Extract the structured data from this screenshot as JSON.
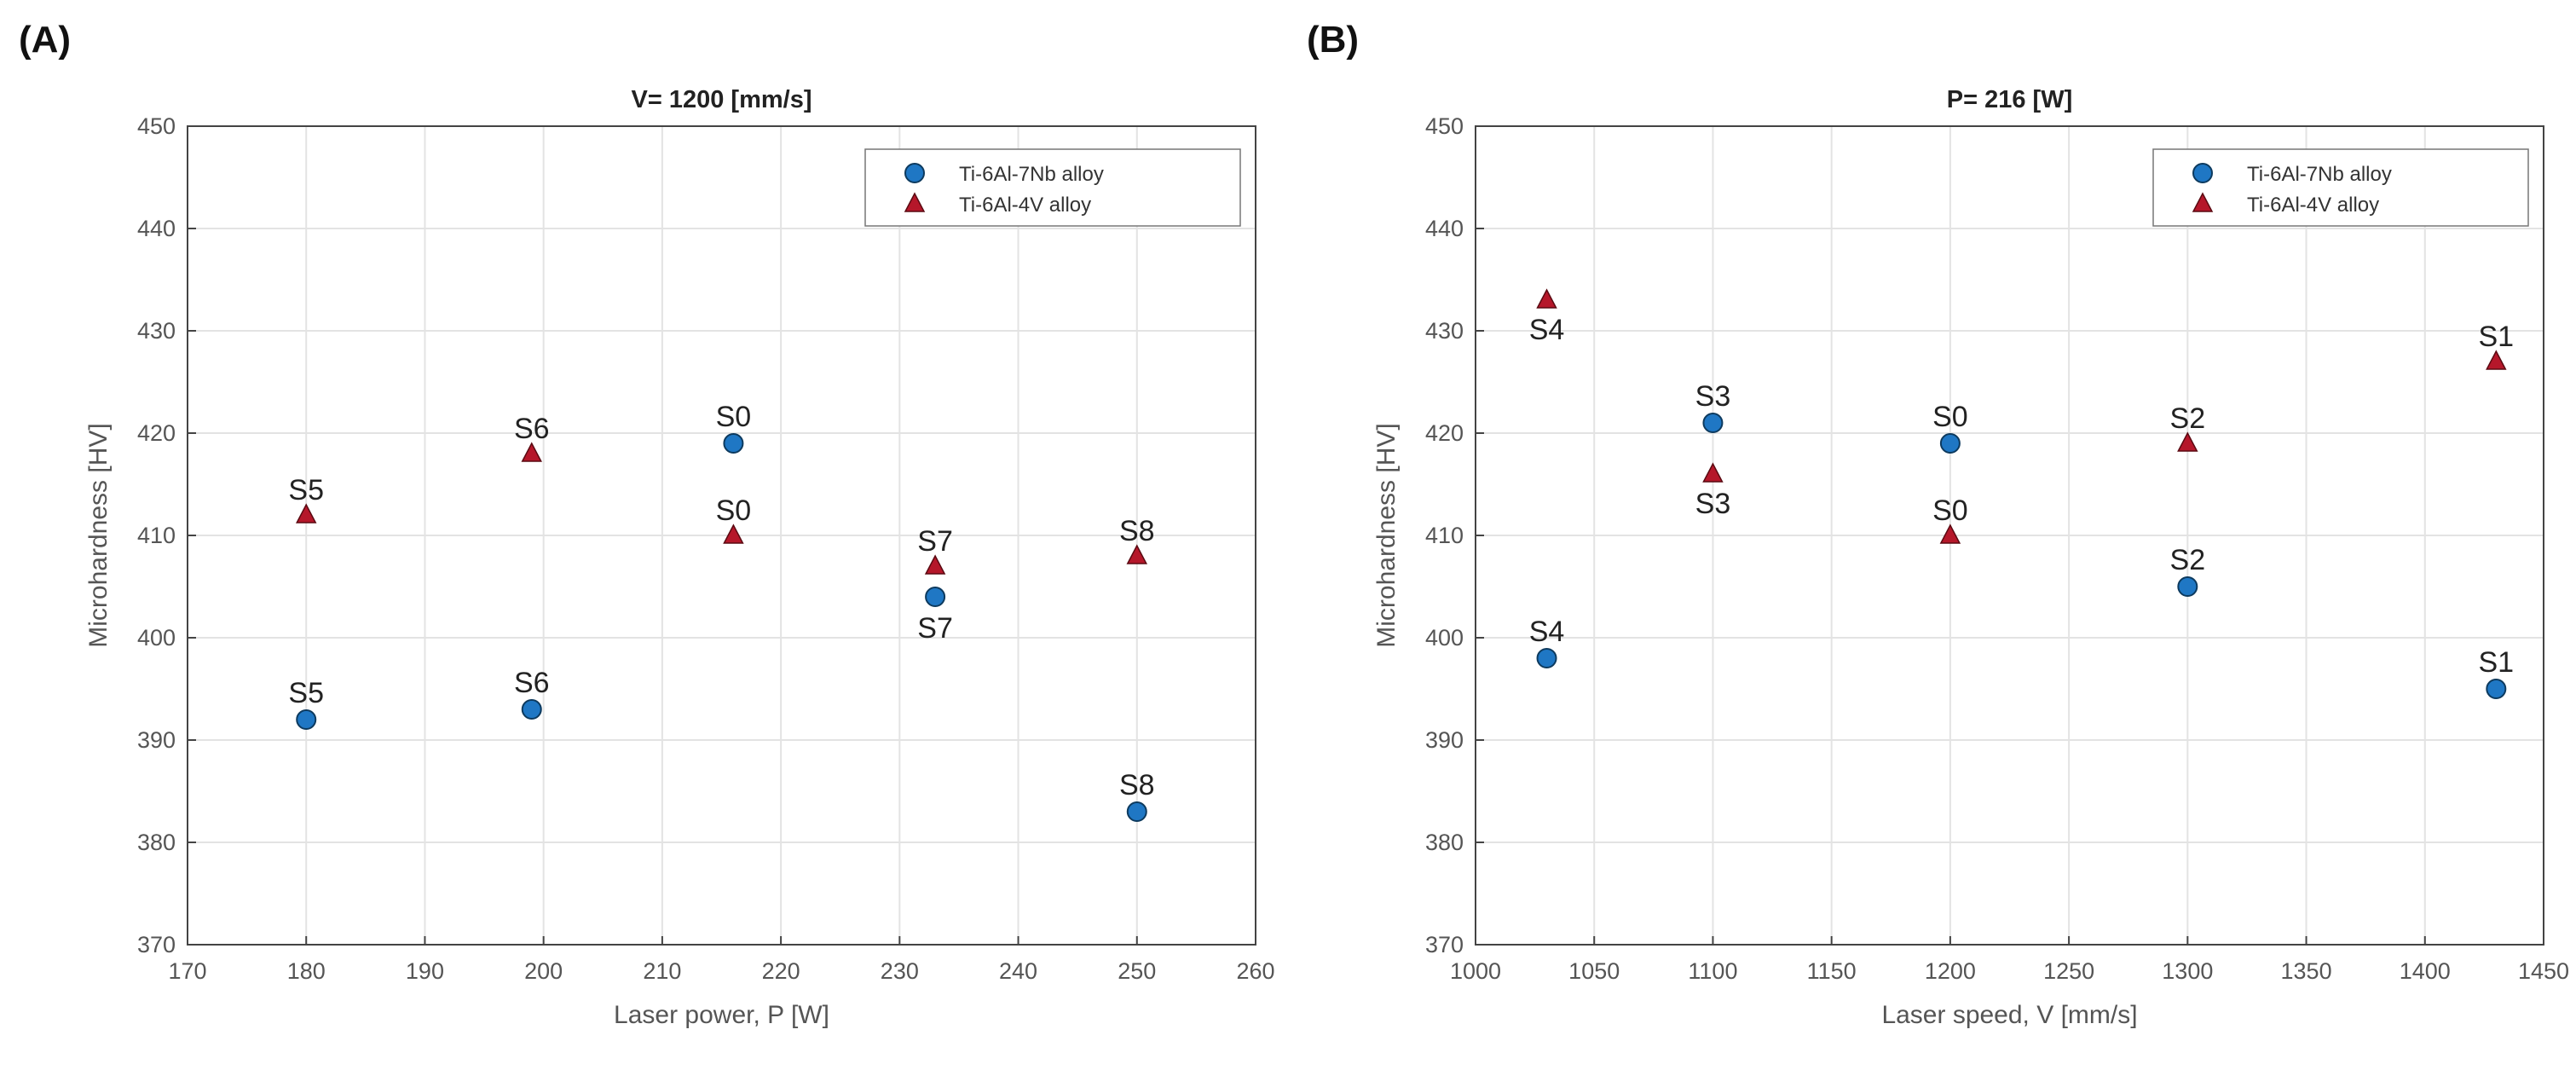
{
  "chart_data": [
    {
      "id": "A",
      "panel_label": "(A)",
      "type": "scatter",
      "title": "V= 1200 [mm/s]",
      "xlabel": "Laser power, P [W]",
      "ylabel": "Microhardness [HV]",
      "xlim": [
        170,
        260
      ],
      "ylim": [
        370,
        450
      ],
      "xticks": [
        170,
        180,
        190,
        200,
        210,
        220,
        230,
        240,
        250,
        260
      ],
      "yticks": [
        370,
        380,
        390,
        400,
        410,
        420,
        430,
        440,
        450
      ],
      "grid": true,
      "legend_position": "top-right",
      "series": [
        {
          "name": "Ti-6Al-7Nb alloy",
          "marker": "circle",
          "color": "#1f77c4",
          "points": [
            {
              "x": 180,
              "y": 392,
              "label": "S5"
            },
            {
              "x": 199,
              "y": 393,
              "label": "S6"
            },
            {
              "x": 216,
              "y": 419,
              "label": "S0"
            },
            {
              "x": 233,
              "y": 404,
              "label": "S7"
            },
            {
              "x": 250,
              "y": 383,
              "label": "S8"
            }
          ]
        },
        {
          "name": "Ti-6Al-4V alloy",
          "marker": "triangle",
          "color": "#b5172a",
          "points": [
            {
              "x": 180,
              "y": 412,
              "label": "S5"
            },
            {
              "x": 199,
              "y": 418,
              "label": "S6"
            },
            {
              "x": 216,
              "y": 410,
              "label": "S0"
            },
            {
              "x": 233,
              "y": 407,
              "label": "S7"
            },
            {
              "x": 250,
              "y": 408,
              "label": "S8"
            }
          ]
        }
      ]
    },
    {
      "id": "B",
      "panel_label": "(B)",
      "type": "scatter",
      "title": "P= 216 [W]",
      "xlabel": "Laser speed, V [mm/s]",
      "ylabel": "Microhardness [HV]",
      "xlim": [
        1000,
        1450
      ],
      "ylim": [
        370,
        450
      ],
      "xticks": [
        1000,
        1050,
        1100,
        1150,
        1200,
        1250,
        1300,
        1350,
        1400,
        1450
      ],
      "yticks": [
        370,
        380,
        390,
        400,
        410,
        420,
        430,
        440,
        450
      ],
      "grid": true,
      "legend_position": "top-right",
      "series": [
        {
          "name": "Ti-6Al-7Nb alloy",
          "marker": "circle",
          "color": "#1f77c4",
          "points": [
            {
              "x": 1030,
              "y": 398,
              "label": "S4"
            },
            {
              "x": 1100,
              "y": 421,
              "label": "S3"
            },
            {
              "x": 1200,
              "y": 419,
              "label": "S0"
            },
            {
              "x": 1300,
              "y": 405,
              "label": "S2"
            },
            {
              "x": 1430,
              "y": 395,
              "label": "S1"
            }
          ]
        },
        {
          "name": "Ti-6Al-4V alloy",
          "marker": "triangle",
          "color": "#b5172a",
          "points": [
            {
              "x": 1030,
              "y": 433,
              "label": "S4"
            },
            {
              "x": 1100,
              "y": 416,
              "label": "S3"
            },
            {
              "x": 1200,
              "y": 410,
              "label": "S0"
            },
            {
              "x": 1300,
              "y": 419,
              "label": "S2"
            },
            {
              "x": 1430,
              "y": 427,
              "label": "S1"
            }
          ]
        }
      ]
    }
  ]
}
